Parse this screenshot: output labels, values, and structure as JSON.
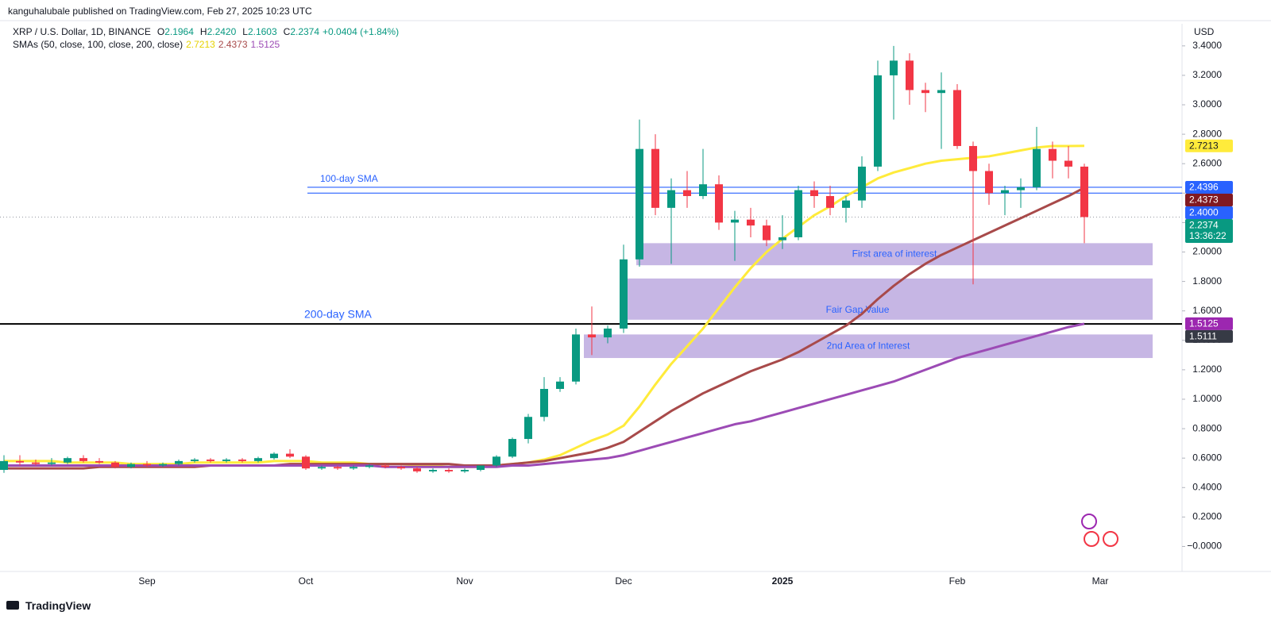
{
  "header": {
    "publisher": "kanguhalubale published on TradingView.com, Feb 27, 2025 10:23 UTC",
    "symbol": "XRP / U.S. Dollar, 1D, BINANCE",
    "ohlc": [
      {
        "key": "O",
        "value": "2.1964"
      },
      {
        "key": "H",
        "value": "2.2420"
      },
      {
        "key": "L",
        "value": "2.1603"
      },
      {
        "key": "C",
        "value": "2.2374"
      }
    ],
    "change": "+0.0404 (+1.84%)",
    "sma_legend": "SMAs (50, close, 100, close, 200, close)",
    "currency": "USD",
    "countdown": "13:36:22"
  },
  "footer": {
    "brand": "TradingView"
  },
  "chart_data": {
    "type": "candlestick",
    "categories": [
      null,
      null,
      null,
      null,
      null,
      null,
      null,
      null,
      null,
      "Sep",
      null,
      null,
      null,
      null,
      null,
      null,
      null,
      null,
      null,
      "Oct",
      null,
      null,
      null,
      null,
      null,
      null,
      null,
      null,
      null,
      "Nov",
      null,
      null,
      null,
      null,
      null,
      null,
      null,
      null,
      null,
      "Dec",
      null,
      null,
      null,
      null,
      null,
      null,
      null,
      null,
      null,
      "2025",
      null,
      null,
      null,
      null,
      null,
      null,
      null,
      null,
      null,
      null,
      "Feb",
      null,
      null,
      null,
      null,
      null,
      null,
      null,
      null,
      "Mar"
    ],
    "open": [
      0.52,
      0.58,
      0.57,
      0.56,
      0.57,
      0.6,
      0.58,
      0.57,
      0.54,
      0.56,
      0.55,
      0.56,
      0.58,
      0.59,
      0.58,
      0.59,
      0.58,
      0.6,
      0.63,
      0.61,
      0.53,
      0.54,
      0.53,
      0.54,
      0.55,
      0.54,
      0.53,
      0.51,
      0.52,
      0.51,
      0.52,
      0.55,
      0.61,
      0.73,
      0.88,
      1.07,
      1.12,
      1.44,
      1.42,
      1.48,
      1.95,
      2.7,
      2.3,
      2.42,
      2.38,
      2.46,
      2.2,
      2.22,
      2.18,
      2.08,
      2.1,
      2.42,
      2.38,
      2.3,
      2.35,
      2.58,
      3.2,
      3.3,
      3.1,
      3.08,
      3.1,
      2.72,
      2.55,
      2.4,
      2.42,
      2.44,
      2.7,
      2.62,
      2.58,
      null
    ],
    "high": [
      0.62,
      0.62,
      0.59,
      0.6,
      0.61,
      0.62,
      0.6,
      0.58,
      0.57,
      0.58,
      0.57,
      0.59,
      0.6,
      0.6,
      0.6,
      0.6,
      0.61,
      0.64,
      0.66,
      0.62,
      0.55,
      0.55,
      0.55,
      0.56,
      0.56,
      0.55,
      0.54,
      0.53,
      0.53,
      0.53,
      0.55,
      0.62,
      0.74,
      0.9,
      1.15,
      1.15,
      1.48,
      1.63,
      1.5,
      2.05,
      2.9,
      2.8,
      2.5,
      2.55,
      2.7,
      2.52,
      2.28,
      2.3,
      2.22,
      2.25,
      2.45,
      2.48,
      2.45,
      2.38,
      2.65,
      3.3,
      3.4,
      3.35,
      3.15,
      3.22,
      3.14,
      2.75,
      2.6,
      2.45,
      2.5,
      2.85,
      2.75,
      2.72,
      2.6,
      null
    ],
    "low": [
      0.5,
      0.55,
      0.55,
      0.55,
      0.56,
      0.57,
      0.56,
      0.53,
      0.53,
      0.54,
      0.54,
      0.55,
      0.57,
      0.57,
      0.57,
      0.57,
      0.57,
      0.59,
      0.6,
      0.52,
      0.52,
      0.52,
      0.52,
      0.53,
      0.53,
      0.52,
      0.5,
      0.5,
      0.5,
      0.5,
      0.51,
      0.54,
      0.6,
      0.7,
      0.85,
      1.05,
      1.1,
      1.3,
      1.38,
      1.45,
      1.9,
      2.25,
      1.92,
      2.3,
      2.36,
      2.15,
      1.94,
      2.1,
      2.04,
      2.02,
      2.08,
      2.3,
      2.25,
      2.2,
      2.3,
      2.55,
      2.9,
      3.0,
      2.95,
      2.7,
      2.7,
      1.78,
      2.32,
      2.25,
      2.3,
      2.42,
      2.5,
      2.5,
      2.06,
      null
    ],
    "close": [
      0.58,
      0.57,
      0.56,
      0.57,
      0.6,
      0.58,
      0.57,
      0.54,
      0.56,
      0.55,
      0.56,
      0.58,
      0.59,
      0.58,
      0.59,
      0.58,
      0.6,
      0.63,
      0.61,
      0.53,
      0.54,
      0.53,
      0.54,
      0.55,
      0.54,
      0.53,
      0.51,
      0.52,
      0.51,
      0.52,
      0.55,
      0.61,
      0.73,
      0.88,
      1.07,
      1.12,
      1.44,
      1.42,
      1.48,
      1.95,
      2.7,
      2.3,
      2.42,
      2.38,
      2.46,
      2.2,
      2.22,
      2.18,
      2.08,
      2.1,
      2.42,
      2.38,
      2.3,
      2.35,
      2.58,
      3.2,
      3.3,
      3.1,
      3.08,
      3.1,
      2.72,
      2.55,
      2.4,
      2.42,
      2.44,
      2.7,
      2.62,
      2.58,
      2.2374,
      null
    ],
    "up_color": "#089981",
    "down_color": "#f23645",
    "series": [
      {
        "color": "#ffeb3b",
        "values": [
          0.58,
          0.58,
          0.58,
          0.58,
          0.57,
          0.57,
          0.57,
          0.57,
          0.56,
          0.56,
          0.56,
          0.56,
          0.57,
          0.57,
          0.57,
          0.57,
          0.57,
          0.58,
          0.58,
          0.58,
          0.57,
          0.57,
          0.57,
          0.56,
          0.56,
          0.56,
          0.55,
          0.55,
          0.54,
          0.54,
          0.54,
          0.55,
          0.56,
          0.57,
          0.59,
          0.62,
          0.67,
          0.72,
          0.76,
          0.82,
          0.95,
          1.1,
          1.24,
          1.36,
          1.48,
          1.62,
          1.76,
          1.89,
          2.0,
          2.09,
          2.17,
          2.25,
          2.31,
          2.38,
          2.44,
          2.5,
          2.54,
          2.57,
          2.6,
          2.62,
          2.63,
          2.64,
          2.65,
          2.67,
          2.69,
          2.71,
          2.72,
          2.72,
          2.7213,
          null
        ]
      },
      {
        "color": "#a84a4a",
        "values": [
          0.53,
          0.53,
          0.53,
          0.53,
          0.53,
          0.53,
          0.54,
          0.54,
          0.54,
          0.54,
          0.54,
          0.54,
          0.54,
          0.55,
          0.55,
          0.55,
          0.55,
          0.55,
          0.56,
          0.56,
          0.56,
          0.56,
          0.56,
          0.56,
          0.56,
          0.56,
          0.56,
          0.56,
          0.56,
          0.55,
          0.55,
          0.55,
          0.56,
          0.57,
          0.58,
          0.6,
          0.62,
          0.64,
          0.67,
          0.71,
          0.78,
          0.85,
          0.92,
          0.98,
          1.04,
          1.09,
          1.14,
          1.19,
          1.23,
          1.27,
          1.32,
          1.38,
          1.44,
          1.5,
          1.58,
          1.68,
          1.77,
          1.85,
          1.92,
          1.98,
          2.03,
          2.08,
          2.13,
          2.18,
          2.23,
          2.28,
          2.33,
          2.38,
          2.4373,
          null
        ]
      },
      {
        "color": "#9c4bb5",
        "values": [
          0.55,
          0.55,
          0.55,
          0.55,
          0.55,
          0.55,
          0.55,
          0.55,
          0.55,
          0.55,
          0.55,
          0.55,
          0.55,
          0.55,
          0.55,
          0.55,
          0.55,
          0.55,
          0.55,
          0.55,
          0.55,
          0.55,
          0.55,
          0.55,
          0.54,
          0.54,
          0.54,
          0.54,
          0.54,
          0.54,
          0.54,
          0.54,
          0.55,
          0.55,
          0.56,
          0.57,
          0.58,
          0.59,
          0.6,
          0.62,
          0.65,
          0.68,
          0.71,
          0.74,
          0.77,
          0.8,
          0.83,
          0.85,
          0.88,
          0.91,
          0.94,
          0.97,
          1.0,
          1.03,
          1.06,
          1.09,
          1.12,
          1.16,
          1.2,
          1.24,
          1.28,
          1.31,
          1.34,
          1.37,
          1.4,
          1.43,
          1.46,
          1.49,
          1.5125,
          null
        ]
      }
    ],
    "ylim": [
      -0.17,
      3.55
    ],
    "yticks": [
      {
        "value": 0,
        "label": "−0.0000"
      },
      {
        "value": 0.2,
        "label": "0.2000"
      },
      {
        "value": 0.4,
        "label": "0.4000"
      },
      {
        "value": 0.6,
        "label": "0.6000"
      },
      {
        "value": 0.8,
        "label": "0.8000"
      },
      {
        "value": 1,
        "label": "1.0000"
      },
      {
        "value": 1.2,
        "label": "1.2000"
      },
      {
        "value": 1.4,
        "label": "1.4000"
      },
      {
        "value": 1.6,
        "label": "1.6000"
      },
      {
        "value": 1.8,
        "label": "1.8000"
      },
      {
        "value": 2,
        "label": "2.0000"
      },
      {
        "value": 2.2,
        "label": "2.2000"
      },
      {
        "value": 2.4,
        "label": "2.4000"
      },
      {
        "value": 2.6,
        "label": "2.6000"
      },
      {
        "value": 2.8,
        "label": "2.8000"
      },
      {
        "value": 3,
        "label": "3.0000"
      },
      {
        "value": 3.2,
        "label": "3.2000"
      },
      {
        "value": 3.4,
        "label": "3.4000"
      }
    ],
    "levels": [
      {
        "value": 2.4396,
        "color": "#2962ff"
      },
      {
        "value": 2.4,
        "label": "2.4000",
        "color": "#2962ff"
      },
      {
        "value": 1.5111,
        "color": "#000000"
      }
    ],
    "annotations": [
      "100-day SMA",
      "200-day SMA"
    ],
    "zones": [
      {
        "label": "First area of interest",
        "top": 2.06,
        "bottom": 1.91
      },
      {
        "label": "Fair Gap Value",
        "top": 1.82,
        "bottom": 1.54
      },
      {
        "label": "2nd Area of Interest",
        "top": 1.44,
        "bottom": 1.28
      }
    ],
    "zone_color": "#b39ddb"
  }
}
